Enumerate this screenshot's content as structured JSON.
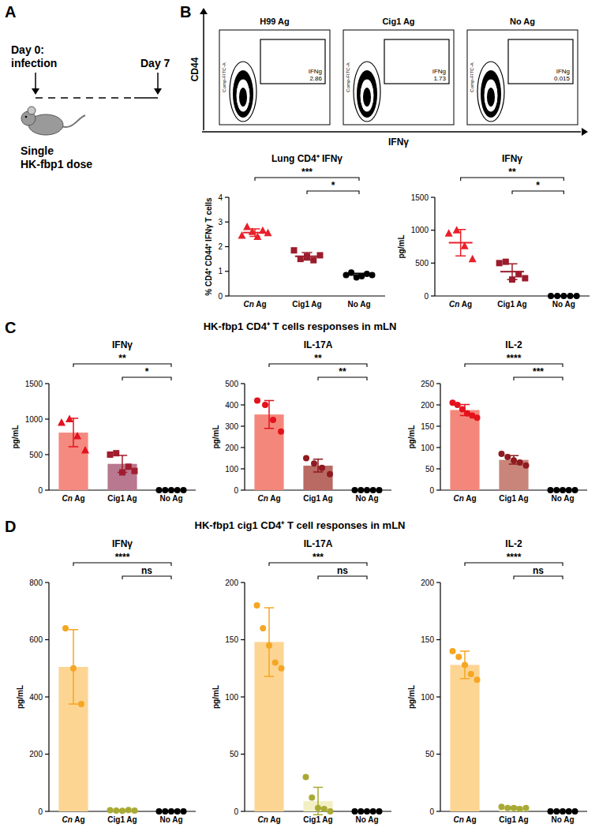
{
  "panel_labels": [
    "A",
    "B",
    "C",
    "D"
  ],
  "schematic": {
    "start_lines": [
      "Day 0:",
      "infection"
    ],
    "end_lines": [
      "Day 7"
    ],
    "dose_lines": [
      "Single",
      "HK-fbp1 dose"
    ]
  },
  "flow": {
    "y_axis_label": "CD44",
    "x_axis_label": "IFNγ",
    "channel_label": "Comp-FITC-A",
    "gate_label": "IFNg",
    "plots": [
      {
        "title": "H99 Ag",
        "gate_value": 2.86
      },
      {
        "title": "Cig1 Ag",
        "gate_value": 1.73
      },
      {
        "title": "No Ag",
        "gate_value": 0.015
      }
    ]
  },
  "section_titles": [
    "HK-fbp1 CD4⁺ T cells responses in mLN",
    "HK-fbp1 cig1 CD4⁺ T cell responses in mLN"
  ],
  "chart_data": [
    {
      "type": "dot",
      "title": "Lung CD4⁺ IFNγ",
      "ylabel": "% CD4⁺ CD44⁺ IFNγ T cells",
      "categories": [
        "Cn Ag",
        "Cig1 Ag",
        "No Ag"
      ],
      "values": [
        2.57,
        1.61,
        0.85
      ],
      "errors": [
        0.15,
        0.15,
        0.07
      ],
      "points": [
        {
          "marker": "triangle",
          "color": "#e8202a",
          "values": [
            2.45,
            2.8,
            2.6,
            2.4,
            2.65,
            2.55
          ]
        },
        {
          "marker": "square",
          "color": "#9b1c2c",
          "values": [
            1.85,
            1.5,
            1.6,
            1.45,
            1.65
          ]
        },
        {
          "marker": "circle",
          "color": "#000000",
          "values": [
            0.85,
            0.95,
            0.75,
            0.8,
            0.9,
            0.85
          ]
        }
      ],
      "ylim": [
        0,
        4
      ],
      "yticks": [
        0,
        1,
        2,
        3,
        4
      ],
      "grid": false,
      "significance": [
        {
          "groups": [
            "Cn Ag",
            "No Ag"
          ],
          "label": "***"
        },
        {
          "groups": [
            "Cig1 Ag",
            "No Ag"
          ],
          "label": "*"
        }
      ]
    },
    {
      "type": "dot",
      "title": "IFNγ",
      "ylabel": "pg/mL",
      "categories": [
        "Cn Ag",
        "Cig1 Ag",
        "No Ag"
      ],
      "values": [
        810,
        370,
        0
      ],
      "errors": [
        200,
        120,
        0
      ],
      "points": [
        {
          "marker": "triangle",
          "color": "#e8202a",
          "values": [
            950,
            1000,
            760,
            560
          ]
        },
        {
          "marker": "square",
          "color": "#9b1c2c",
          "values": [
            500,
            520,
            250,
            330,
            270
          ]
        },
        {
          "marker": "circle",
          "color": "#000000",
          "values": [
            0,
            0,
            0,
            0,
            0
          ]
        }
      ],
      "ylim": [
        0,
        1500
      ],
      "yticks": [
        0,
        500,
        1000,
        1500
      ],
      "grid": false,
      "significance": [
        {
          "groups": [
            "Cn Ag",
            "No Ag"
          ],
          "label": "**"
        },
        {
          "groups": [
            "Cig1 Ag",
            "No Ag"
          ],
          "label": "*"
        }
      ]
    },
    {
      "type": "bar",
      "title": "IFNγ",
      "ylabel": "pg/mL",
      "categories": [
        "Cn Ag",
        "Cig1 Ag",
        "No Ag"
      ],
      "values": [
        810,
        370,
        0
      ],
      "errors": [
        200,
        120,
        0
      ],
      "colors": [
        "#f48a80",
        "#b9788f",
        "#ffffff"
      ],
      "points": [
        {
          "marker": "triangle",
          "color": "#e3121d",
          "values": [
            950,
            1000,
            760,
            560
          ]
        },
        {
          "marker": "square",
          "color": "#a01c2e",
          "values": [
            500,
            520,
            250,
            330,
            270
          ]
        },
        {
          "marker": "circle",
          "color": "#000000",
          "values": [
            0,
            0,
            0,
            0,
            0
          ]
        }
      ],
      "ylim": [
        0,
        1500
      ],
      "yticks": [
        0,
        500,
        1000,
        1500
      ],
      "grid": false,
      "significance": [
        {
          "groups": [
            "Cn Ag",
            "No Ag"
          ],
          "label": "**"
        },
        {
          "groups": [
            "Cig1 Ag",
            "No Ag"
          ],
          "label": "*"
        }
      ]
    },
    {
      "type": "bar",
      "title": "IL-17A",
      "ylabel": "pg/mL",
      "categories": [
        "Cn Ag",
        "Cig1 Ag",
        "No Ag"
      ],
      "values": [
        355,
        115,
        0
      ],
      "errors": [
        65,
        30,
        0
      ],
      "colors": [
        "#f4877b",
        "#b96a63",
        "#ffffff"
      ],
      "points": [
        {
          "marker": "circle",
          "color": "#e3121d",
          "values": [
            420,
            400,
            330,
            275
          ]
        },
        {
          "marker": "circle",
          "color": "#8f1a1f",
          "values": [
            150,
            125,
            105,
            75
          ]
        },
        {
          "marker": "circle",
          "color": "#000000",
          "values": [
            0,
            0,
            0,
            0,
            0
          ]
        }
      ],
      "ylim": [
        0,
        500
      ],
      "yticks": [
        0,
        100,
        200,
        300,
        400,
        500
      ],
      "grid": false,
      "significance": [
        {
          "groups": [
            "Cn Ag",
            "No Ag"
          ],
          "label": "**"
        },
        {
          "groups": [
            "Cig1 Ag",
            "No Ag"
          ],
          "label": "**"
        }
      ]
    },
    {
      "type": "bar",
      "title": "IL-2",
      "ylabel": "pg/mL",
      "categories": [
        "Cn Ag",
        "Cig1 Ag",
        "No Ag"
      ],
      "values": [
        188,
        71,
        0
      ],
      "errors": [
        13,
        10,
        0
      ],
      "colors": [
        "#f4877b",
        "#c9857a",
        "#ffffff"
      ],
      "points": [
        {
          "marker": "circle",
          "color": "#e3121d",
          "values": [
            205,
            200,
            190,
            180,
            175,
            170
          ]
        },
        {
          "marker": "circle",
          "color": "#8f1a1f",
          "values": [
            85,
            78,
            70,
            65,
            58
          ]
        },
        {
          "marker": "circle",
          "color": "#000000",
          "values": [
            0,
            0,
            0,
            0,
            0
          ]
        }
      ],
      "ylim": [
        0,
        250
      ],
      "yticks": [
        0,
        50,
        100,
        150,
        200,
        250
      ],
      "grid": false,
      "significance": [
        {
          "groups": [
            "Cn Ag",
            "No Ag"
          ],
          "label": "****"
        },
        {
          "groups": [
            "Cig1 Ag",
            "No Ag"
          ],
          "label": "***"
        }
      ]
    },
    {
      "type": "bar",
      "title": "IFNγ",
      "ylabel": "pg/mL",
      "categories": [
        "Cn Ag",
        "Cig1 Ag",
        "No Ag"
      ],
      "values": [
        505,
        3,
        0
      ],
      "errors": [
        130,
        1,
        0
      ],
      "colors": [
        "#fdd593",
        "#f3efc5",
        "#ffffff"
      ],
      "points": [
        {
          "marker": "circle",
          "color": "#f5a623",
          "values": [
            640,
            500,
            375
          ]
        },
        {
          "marker": "circle",
          "color": "#a8aa35",
          "values": [
            4,
            3,
            2,
            5,
            3
          ]
        },
        {
          "marker": "circle",
          "color": "#000000",
          "values": [
            0,
            0,
            0,
            0,
            0
          ]
        }
      ],
      "ylim": [
        0,
        800
      ],
      "yticks": [
        0,
        200,
        400,
        600,
        800
      ],
      "grid": false,
      "significance": [
        {
          "groups": [
            "Cn Ag",
            "No Ag"
          ],
          "label": "****"
        },
        {
          "groups": [
            "Cig1 Ag",
            "No Ag"
          ],
          "label": "ns"
        }
      ]
    },
    {
      "type": "bar",
      "title": "IL-17A",
      "ylabel": "pg/mL",
      "categories": [
        "Cn Ag",
        "Cig1 Ag",
        "No Ag"
      ],
      "values": [
        148,
        9,
        0
      ],
      "errors": [
        30,
        12,
        0
      ],
      "colors": [
        "#fdd593",
        "#f3efc5",
        "#ffffff"
      ],
      "points": [
        {
          "marker": "circle",
          "color": "#f5a623",
          "values": [
            180,
            160,
            145,
            130,
            125
          ]
        },
        {
          "marker": "circle",
          "color": "#a8aa35",
          "values": [
            30,
            12,
            3,
            2,
            0
          ]
        },
        {
          "marker": "circle",
          "color": "#000000",
          "values": [
            0,
            0,
            0,
            0,
            0
          ]
        }
      ],
      "ylim": [
        0,
        200
      ],
      "yticks": [
        0,
        50,
        100,
        150,
        200
      ],
      "grid": false,
      "significance": [
        {
          "groups": [
            "Cn Ag",
            "No Ag"
          ],
          "label": "***"
        },
        {
          "groups": [
            "Cig1 Ag",
            "No Ag"
          ],
          "label": "ns"
        }
      ]
    },
    {
      "type": "bar",
      "title": "IL-2",
      "ylabel": "pg/mL",
      "categories": [
        "Cn Ag",
        "Cig1 Ag",
        "No Ag"
      ],
      "values": [
        128,
        3,
        0
      ],
      "errors": [
        12,
        1,
        0
      ],
      "colors": [
        "#fdd593",
        "#f3efc5",
        "#ffffff"
      ],
      "points": [
        {
          "marker": "circle",
          "color": "#f5a623",
          "values": [
            140,
            135,
            128,
            120,
            115
          ]
        },
        {
          "marker": "circle",
          "color": "#a8aa35",
          "values": [
            4,
            3,
            3,
            2,
            3
          ]
        },
        {
          "marker": "circle",
          "color": "#000000",
          "values": [
            0,
            0,
            0,
            0,
            0
          ]
        }
      ],
      "ylim": [
        0,
        200
      ],
      "yticks": [
        0,
        50,
        100,
        150,
        200
      ],
      "grid": false,
      "significance": [
        {
          "groups": [
            "Cn Ag",
            "No Ag"
          ],
          "label": "****"
        },
        {
          "groups": [
            "Cig1 Ag",
            "No Ag"
          ],
          "label": "ns"
        }
      ]
    }
  ]
}
